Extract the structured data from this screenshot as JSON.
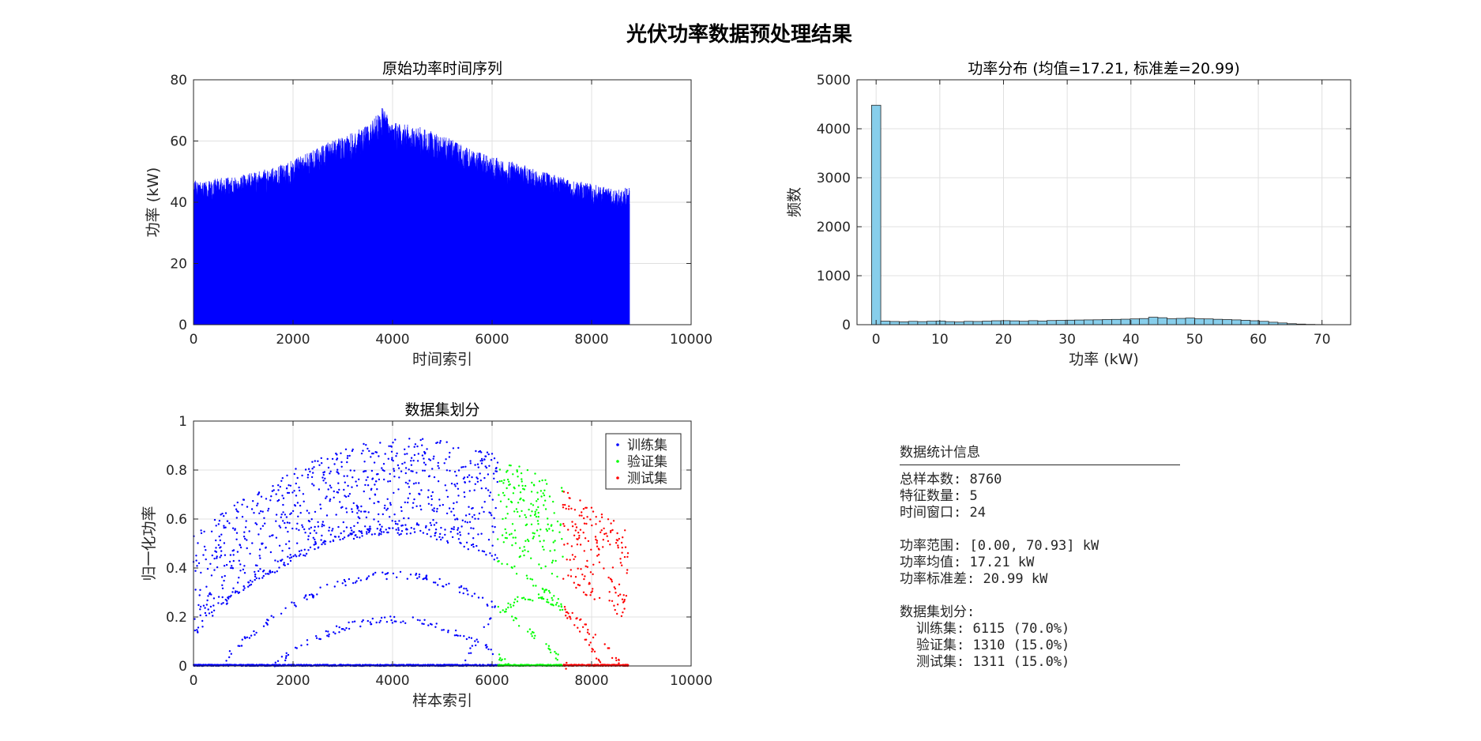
{
  "figure": {
    "title": "光伏功率数据预处理结果"
  },
  "chart_data": [
    {
      "id": "ts",
      "type": "line",
      "title": "原始功率时间序列",
      "xlabel": "时间索引",
      "ylabel": "功率 (kW)",
      "xlim": [
        0,
        10000
      ],
      "ylim": [
        0,
        80
      ],
      "xticks": [
        0,
        2000,
        4000,
        6000,
        8000,
        10000
      ],
      "yticks": [
        0,
        20,
        40,
        60,
        80
      ],
      "grid": true,
      "color": "#0000ff",
      "n_points": 8760,
      "envelope": {
        "x": [
          0,
          500,
          1000,
          1500,
          2000,
          2500,
          3000,
          3500,
          3800,
          4000,
          4500,
          5000,
          5500,
          6000,
          6500,
          7000,
          7500,
          8000,
          8500,
          8760
        ],
        "y": [
          47,
          48,
          49,
          51,
          54,
          58,
          62,
          65,
          71,
          66,
          65,
          62,
          58,
          55,
          53,
          50,
          48,
          46,
          44,
          45
        ]
      }
    },
    {
      "id": "hist",
      "type": "bar",
      "title": "功率分布 (均值=17.21, 标准差=20.99)",
      "xlabel": "功率 (kW)",
      "ylabel": "频数",
      "xlim": [
        -3,
        74.5
      ],
      "ylim": [
        0,
        5000
      ],
      "xticks": [
        0,
        10,
        20,
        30,
        40,
        50,
        60,
        70
      ],
      "yticks": [
        0,
        1000,
        2000,
        3000,
        4000,
        5000
      ],
      "grid": true,
      "color": "#87ceeb",
      "bin_start": -0.72,
      "bin_width": 1.45,
      "values": [
        4480,
        72,
        65,
        58,
        68,
        62,
        70,
        75,
        62,
        55,
        68,
        65,
        72,
        80,
        82,
        78,
        70,
        82,
        75,
        85,
        88,
        92,
        95,
        98,
        100,
        105,
        108,
        112,
        118,
        125,
        152,
        142,
        120,
        128,
        135,
        120,
        118,
        110,
        105,
        98,
        90,
        80,
        68,
        50,
        35,
        20,
        12,
        6,
        3
      ]
    },
    {
      "id": "split",
      "type": "scatter",
      "title": "数据集划分",
      "xlabel": "样本索引",
      "ylabel": "归一化功率",
      "xlim": [
        0,
        10000
      ],
      "ylim": [
        0,
        1
      ],
      "xticks": [
        0,
        2000,
        4000,
        6000,
        8000,
        10000
      ],
      "yticks": [
        0,
        0.2,
        0.4,
        0.6,
        0.8,
        1
      ],
      "ytick_labels": [
        "0",
        "0.2",
        "0.4",
        "0.6",
        "0.8",
        "1"
      ],
      "grid": true,
      "legend_position": "top-right",
      "series": [
        {
          "name": "训练集",
          "range": [
            0,
            6115
          ],
          "color": "#0000ff"
        },
        {
          "name": "验证集",
          "range": [
            6115,
            7425
          ],
          "color": "#00ff00"
        },
        {
          "name": "测试集",
          "range": [
            7425,
            8736
          ],
          "color": "#ff0000"
        }
      ]
    }
  ],
  "stats_panel": {
    "title": "数据统计信息",
    "lines": [
      {
        "text": "总样本数: 8760",
        "indent": false
      },
      {
        "text": "特征数量: 5",
        "indent": false
      },
      {
        "text": "时间窗口: 24",
        "indent": false
      },
      {
        "text": "",
        "indent": false
      },
      {
        "text": "功率范围: [0.00, 70.93] kW",
        "indent": false
      },
      {
        "text": "功率均值: 17.21 kW",
        "indent": false
      },
      {
        "text": "功率标准差: 20.99 kW",
        "indent": false
      },
      {
        "text": "",
        "indent": false
      },
      {
        "text": "数据集划分:",
        "indent": false
      },
      {
        "text": "训练集: 6115 (70.0%)",
        "indent": true
      },
      {
        "text": "验证集: 1310 (15.0%)",
        "indent": true
      },
      {
        "text": "测试集: 1311 (15.0%)",
        "indent": true
      }
    ]
  }
}
